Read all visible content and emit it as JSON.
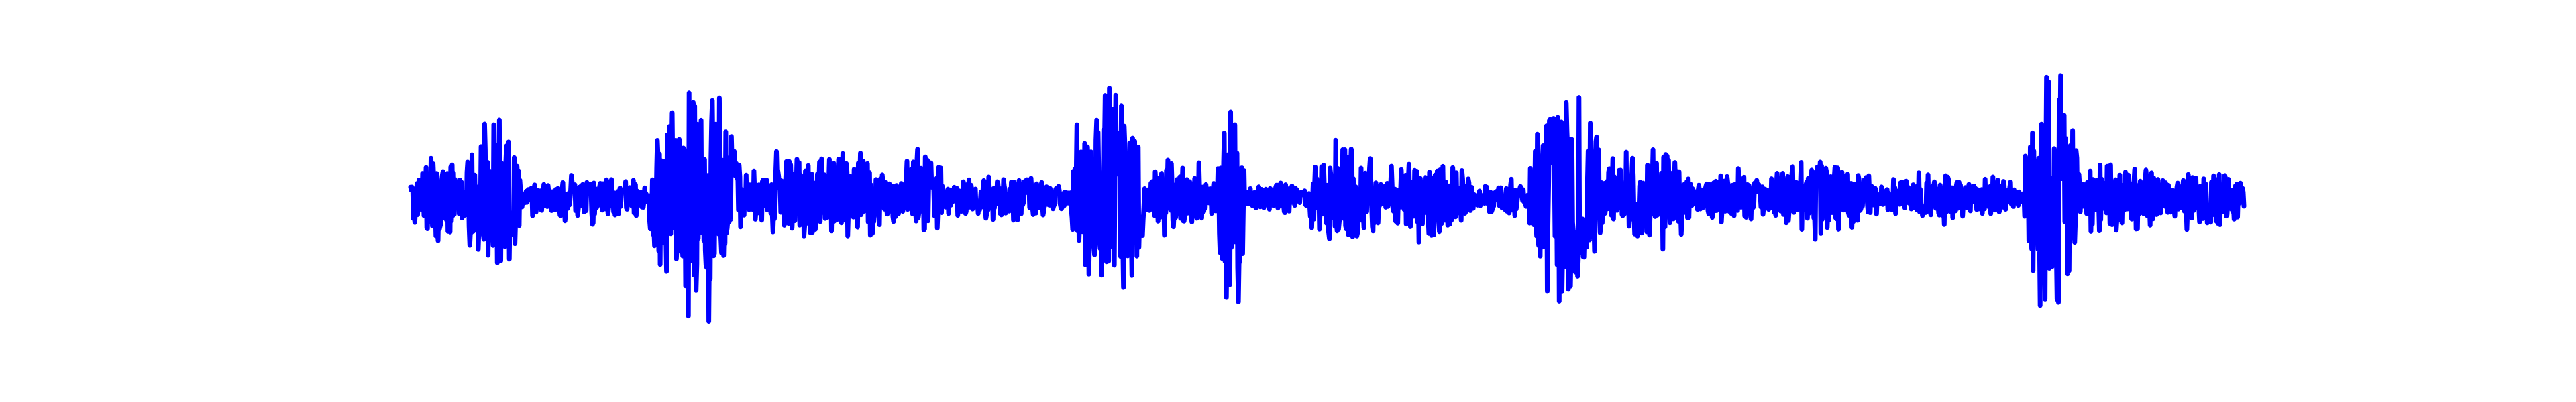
{
  "chart_data": {
    "type": "line",
    "title": "",
    "xlabel": "",
    "ylabel": "",
    "axes_visible": false,
    "grid": false,
    "legend": "none",
    "color": "#0000ff",
    "xlim": [
      0,
      1
    ],
    "ylim": [
      -1,
      1
    ],
    "series": [
      {
        "segments": [
          {
            "x0": 0.0,
            "x1": 0.03,
            "peak": 0.4,
            "base": 0.12
          },
          {
            "x0": 0.03,
            "x1": 0.06,
            "peak": 0.75,
            "base": 0.18
          },
          {
            "x0": 0.06,
            "x1": 0.13,
            "peak": 0.2,
            "base": 0.07
          },
          {
            "x0": 0.13,
            "x1": 0.18,
            "peak": 1.0,
            "base": 0.3
          },
          {
            "x0": 0.18,
            "x1": 0.27,
            "peak": 0.4,
            "base": 0.12
          },
          {
            "x0": 0.27,
            "x1": 0.29,
            "peak": 0.55,
            "base": 0.2
          },
          {
            "x0": 0.29,
            "x1": 0.36,
            "peak": 0.2,
            "base": 0.08
          },
          {
            "x0": 0.36,
            "x1": 0.4,
            "peak": 1.0,
            "base": 0.35
          },
          {
            "x0": 0.4,
            "x1": 0.44,
            "peak": 0.3,
            "base": 0.1
          },
          {
            "x0": 0.44,
            "x1": 0.455,
            "peak": 1.0,
            "base": 0.15
          },
          {
            "x0": 0.455,
            "x1": 0.49,
            "peak": 0.15,
            "base": 0.05
          },
          {
            "x0": 0.49,
            "x1": 0.53,
            "peak": 0.45,
            "base": 0.15
          },
          {
            "x0": 0.53,
            "x1": 0.58,
            "peak": 0.35,
            "base": 0.1
          },
          {
            "x0": 0.58,
            "x1": 0.61,
            "peak": 0.15,
            "base": 0.04
          },
          {
            "x0": 0.61,
            "x1": 0.65,
            "peak": 1.0,
            "base": 0.35
          },
          {
            "x0": 0.65,
            "x1": 0.7,
            "peak": 0.45,
            "base": 0.15
          },
          {
            "x0": 0.7,
            "x1": 0.74,
            "peak": 0.25,
            "base": 0.08
          },
          {
            "x0": 0.74,
            "x1": 0.8,
            "peak": 0.35,
            "base": 0.12
          },
          {
            "x0": 0.8,
            "x1": 0.88,
            "peak": 0.2,
            "base": 0.06
          },
          {
            "x0": 0.88,
            "x1": 0.91,
            "peak": 1.0,
            "base": 0.3
          },
          {
            "x0": 0.91,
            "x1": 0.96,
            "peak": 0.35,
            "base": 0.12
          },
          {
            "x0": 0.96,
            "x1": 1.0,
            "peak": 0.3,
            "base": 0.1
          }
        ]
      }
    ]
  }
}
